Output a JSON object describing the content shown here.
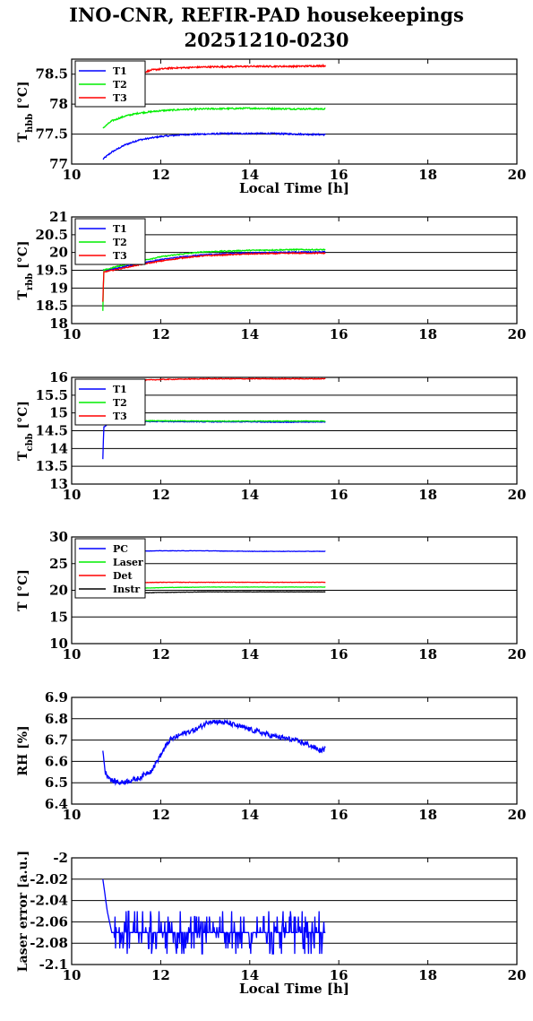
{
  "title_line1": "INO-CNR, REFIR-PAD housekeepings",
  "title_line2": "20251210-0230",
  "chart_data": [
    {
      "type": "line",
      "ylabel_main": "T",
      "ylabel_sub": "hbb",
      "ylabel_unit": " [°C]",
      "xlabel": "Local Time [h]",
      "xlim": [
        10,
        20
      ],
      "ylim": [
        77,
        78.75
      ],
      "xticks": [
        "10",
        "12",
        "14",
        "16",
        "18",
        "20"
      ],
      "yticks": [
        {
          "v": 77,
          "t": "77"
        },
        {
          "v": 77.5,
          "t": "77.5"
        },
        {
          "v": 78,
          "t": "78"
        },
        {
          "v": 78.5,
          "t": "78.5"
        }
      ],
      "grid": true,
      "legend": "top-left",
      "series": [
        {
          "name": "T1",
          "color": "#0000ff",
          "noise": 0.012,
          "points": [
            [
              10.7,
              77.08
            ],
            [
              10.9,
              77.2
            ],
            [
              11.2,
              77.32
            ],
            [
              11.5,
              77.4
            ],
            [
              12,
              77.46
            ],
            [
              12.5,
              77.49
            ],
            [
              13,
              77.5
            ],
            [
              13.5,
              77.51
            ],
            [
              14,
              77.51
            ],
            [
              14.5,
              77.51
            ],
            [
              15,
              77.5
            ],
            [
              15.7,
              77.49
            ]
          ]
        },
        {
          "name": "T2",
          "color": "#00ee00",
          "noise": 0.012,
          "points": [
            [
              10.7,
              77.6
            ],
            [
              10.9,
              77.72
            ],
            [
              11.2,
              77.8
            ],
            [
              11.5,
              77.85
            ],
            [
              12,
              77.89
            ],
            [
              12.5,
              77.91
            ],
            [
              13,
              77.92
            ],
            [
              14,
              77.93
            ],
            [
              15,
              77.92
            ],
            [
              15.7,
              77.92
            ]
          ]
        },
        {
          "name": "T3",
          "color": "#ff0000",
          "noise": 0.012,
          "points": [
            [
              11.2,
              78.38
            ],
            [
              11.5,
              78.5
            ],
            [
              11.8,
              78.57
            ],
            [
              12.2,
              78.6
            ],
            [
              13,
              78.62
            ],
            [
              14,
              78.63
            ],
            [
              15,
              78.63
            ],
            [
              15.7,
              78.64
            ]
          ]
        }
      ]
    },
    {
      "type": "line",
      "ylabel_main": "T",
      "ylabel_sub": "rbb",
      "ylabel_unit": " [°C]",
      "xlabel": "",
      "xlim": [
        10,
        20
      ],
      "ylim": [
        18,
        21
      ],
      "xticks": [
        "10",
        "12",
        "14",
        "16",
        "18",
        "20"
      ],
      "yticks": [
        {
          "v": 18,
          "t": "18"
        },
        {
          "v": 18.5,
          "t": "18.5"
        },
        {
          "v": 19,
          "t": "19"
        },
        {
          "v": 19.5,
          "t": "19.5"
        },
        {
          "v": 20,
          "t": "20"
        },
        {
          "v": 20.5,
          "t": "20.5"
        },
        {
          "v": 21,
          "t": "21"
        }
      ],
      "grid": true,
      "legend": "top-left",
      "series": [
        {
          "name": "T1",
          "color": "#0000ff",
          "noise": 0.015,
          "points": [
            [
              10.7,
              19.5
            ],
            [
              11,
              19.55
            ],
            [
              11.5,
              19.68
            ],
            [
              12,
              19.8
            ],
            [
              12.5,
              19.88
            ],
            [
              13,
              19.94
            ],
            [
              14,
              19.99
            ],
            [
              15,
              20.01
            ],
            [
              15.7,
              20.02
            ]
          ]
        },
        {
          "name": "T2",
          "color": "#00ee00",
          "noise": 0.015,
          "points": [
            [
              10.7,
              18.35
            ],
            [
              10.72,
              19.5
            ],
            [
              11,
              19.6
            ],
            [
              11.5,
              19.75
            ],
            [
              12,
              19.88
            ],
            [
              12.5,
              19.96
            ],
            [
              13,
              20.02
            ],
            [
              14,
              20.06
            ],
            [
              15,
              20.08
            ],
            [
              15.7,
              20.08
            ]
          ]
        },
        {
          "name": "T3",
          "color": "#ff0000",
          "noise": 0.015,
          "points": [
            [
              10.7,
              18.6
            ],
            [
              10.72,
              19.45
            ],
            [
              11,
              19.52
            ],
            [
              11.5,
              19.65
            ],
            [
              12,
              19.76
            ],
            [
              12.5,
              19.85
            ],
            [
              13,
              19.91
            ],
            [
              14,
              19.96
            ],
            [
              15,
              19.98
            ],
            [
              15.7,
              19.98
            ]
          ]
        }
      ]
    },
    {
      "type": "line",
      "ylabel_main": "T",
      "ylabel_sub": "cbb",
      "ylabel_unit": " [°C]",
      "xlabel": "",
      "xlim": [
        10,
        20
      ],
      "ylim": [
        13,
        16
      ],
      "xticks": [
        "10",
        "12",
        "14",
        "16",
        "18",
        "20"
      ],
      "yticks": [
        {
          "v": 13,
          "t": "13"
        },
        {
          "v": 13.5,
          "t": "13.5"
        },
        {
          "v": 14,
          "t": "14"
        },
        {
          "v": 14.5,
          "t": "14.5"
        },
        {
          "v": 15,
          "t": "15"
        },
        {
          "v": 15.5,
          "t": "15.5"
        },
        {
          "v": 16,
          "t": "16"
        }
      ],
      "grid": true,
      "legend": "top-left",
      "series": [
        {
          "name": "T1",
          "color": "#0000ff",
          "noise": 0.01,
          "points": [
            [
              10.7,
              13.7
            ],
            [
              10.72,
              14.6
            ],
            [
              10.9,
              14.75
            ],
            [
              12,
              14.76
            ],
            [
              13,
              14.75
            ],
            [
              14,
              14.75
            ],
            [
              15,
              14.74
            ],
            [
              15.7,
              14.75
            ]
          ]
        },
        {
          "name": "T2",
          "color": "#00ee00",
          "noise": 0.01,
          "points": [
            [
              10.7,
              14.7
            ],
            [
              10.9,
              14.77
            ],
            [
              12,
              14.78
            ],
            [
              13,
              14.77
            ],
            [
              14,
              14.77
            ],
            [
              15,
              14.77
            ],
            [
              15.7,
              14.77
            ]
          ]
        },
        {
          "name": "T3",
          "color": "#ff0000",
          "noise": 0.01,
          "points": [
            [
              10.7,
              15.92
            ],
            [
              11,
              15.9
            ],
            [
              11.5,
              15.92
            ],
            [
              12,
              15.94
            ],
            [
              13,
              15.96
            ],
            [
              14,
              15.96
            ],
            [
              15,
              15.96
            ],
            [
              15.7,
              15.96
            ]
          ]
        }
      ]
    },
    {
      "type": "line",
      "ylabel_main": "T [°C]",
      "ylabel_sub": "",
      "ylabel_unit": "",
      "xlabel": "",
      "xlim": [
        10,
        20
      ],
      "ylim": [
        10,
        30
      ],
      "xticks": [
        "10",
        "12",
        "14",
        "16",
        "18",
        "20"
      ],
      "yticks": [
        {
          "v": 10,
          "t": "10"
        },
        {
          "v": 15,
          "t": "15"
        },
        {
          "v": 20,
          "t": "20"
        },
        {
          "v": 25,
          "t": "25"
        },
        {
          "v": 30,
          "t": "30"
        }
      ],
      "grid": true,
      "legend": "top-left",
      "series": [
        {
          "name": "PC",
          "color": "#0000ff",
          "noise": 0.03,
          "points": [
            [
              10.7,
              27.3
            ],
            [
              12,
              27.4
            ],
            [
              13,
              27.4
            ],
            [
              14,
              27.3
            ],
            [
              15,
              27.3
            ],
            [
              15.7,
              27.3
            ]
          ]
        },
        {
          "name": "Laser",
          "color": "#00ee00",
          "noise": 0.03,
          "points": [
            [
              10.7,
              20.2
            ],
            [
              12,
              20.5
            ],
            [
              13,
              20.6
            ],
            [
              14,
              20.6
            ],
            [
              15,
              20.6
            ],
            [
              15.7,
              20.6
            ]
          ]
        },
        {
          "name": "Det",
          "color": "#ff0000",
          "noise": 0.03,
          "points": [
            [
              10.7,
              21.3
            ],
            [
              12,
              21.5
            ],
            [
              13,
              21.5
            ],
            [
              14,
              21.5
            ],
            [
              15,
              21.5
            ],
            [
              15.7,
              21.5
            ]
          ]
        },
        {
          "name": "Instr",
          "color": "#000000",
          "noise": 0.03,
          "points": [
            [
              10.7,
              19.3
            ],
            [
              12,
              19.6
            ],
            [
              13,
              19.7
            ],
            [
              14,
              19.7
            ],
            [
              15,
              19.7
            ],
            [
              15.7,
              19.7
            ]
          ]
        }
      ]
    },
    {
      "type": "line",
      "ylabel_main": "RH [%]",
      "ylabel_sub": "",
      "ylabel_unit": "",
      "xlabel": "",
      "xlim": [
        10,
        20
      ],
      "ylim": [
        6.4,
        6.9
      ],
      "xticks": [
        "10",
        "12",
        "14",
        "16",
        "18",
        "20"
      ],
      "yticks": [
        {
          "v": 6.4,
          "t": "6.4"
        },
        {
          "v": 6.5,
          "t": "6.5"
        },
        {
          "v": 6.6,
          "t": "6.6"
        },
        {
          "v": 6.7,
          "t": "6.7"
        },
        {
          "v": 6.8,
          "t": "6.8"
        },
        {
          "v": 6.9,
          "t": "6.9"
        }
      ],
      "grid": true,
      "legend": "none",
      "series": [
        {
          "name": "",
          "color": "#0000ff",
          "noise": 0.012,
          "points": [
            [
              10.7,
              6.66
            ],
            [
              10.75,
              6.55
            ],
            [
              10.9,
              6.51
            ],
            [
              11.1,
              6.5
            ],
            [
              11.5,
              6.52
            ],
            [
              11.8,
              6.56
            ],
            [
              12,
              6.63
            ],
            [
              12.2,
              6.7
            ],
            [
              12.5,
              6.73
            ],
            [
              12.8,
              6.75
            ],
            [
              13.1,
              6.79
            ],
            [
              13.5,
              6.78
            ],
            [
              14,
              6.75
            ],
            [
              14.5,
              6.72
            ],
            [
              15,
              6.7
            ],
            [
              15.3,
              6.68
            ],
            [
              15.6,
              6.65
            ],
            [
              15.7,
              6.66
            ]
          ]
        }
      ]
    },
    {
      "type": "line",
      "ylabel_main": "Laser error [a.u.]",
      "ylabel_sub": "",
      "ylabel_unit": "",
      "xlabel": "Local Time [h]",
      "xlim": [
        10,
        20
      ],
      "ylim": [
        -2.1,
        -2.0
      ],
      "xticks": [
        "10",
        "12",
        "14",
        "16",
        "18",
        "20"
      ],
      "yticks": [
        {
          "v": -2.1,
          "t": "-2.1"
        },
        {
          "v": -2.08,
          "t": "-2.08"
        },
        {
          "v": -2.06,
          "t": "-2.06"
        },
        {
          "v": -2.04,
          "t": "-2.04"
        },
        {
          "v": -2.02,
          "t": "-2.02"
        },
        {
          "v": -2.0,
          "t": "-2"
        }
      ],
      "grid": true,
      "legend": "none",
      "series": [
        {
          "name": "",
          "color": "#0000ff",
          "noise": 0,
          "quantize": [
            -2.09,
            -2.085,
            -2.08,
            -2.075,
            -2.07,
            -2.065,
            -2.06,
            -2.055,
            -2.05
          ],
          "points": [
            [
              10.7,
              -2.02
            ],
            [
              10.8,
              -2.05
            ],
            [
              10.9,
              -2.07
            ],
            [
              11.5,
              -2.072
            ],
            [
              12.5,
              -2.07
            ],
            [
              13.5,
              -2.072
            ],
            [
              14.5,
              -2.07
            ],
            [
              15.7,
              -2.072
            ]
          ]
        }
      ]
    }
  ]
}
